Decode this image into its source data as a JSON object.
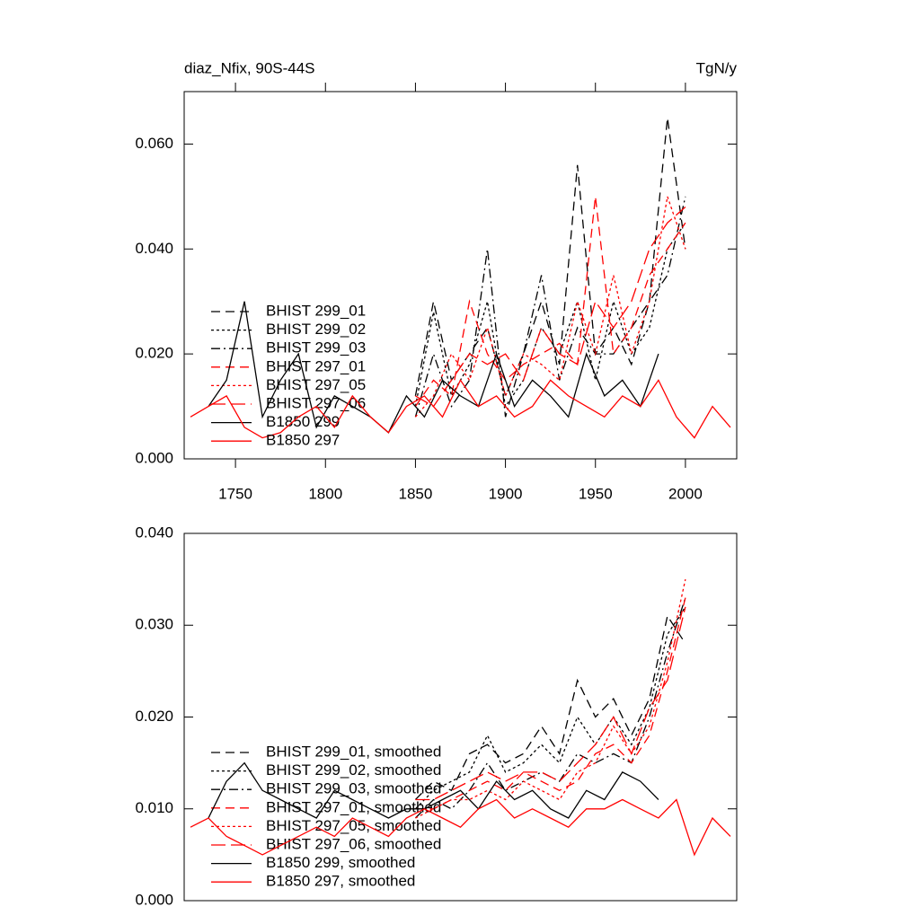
{
  "chart_data": [
    {
      "type": "line",
      "title": "diaz_Nfix, 90S-44S",
      "units": "TgN/y",
      "xlim": [
        1721.5,
        2028.5
      ],
      "ylim": [
        0,
        0.07
      ],
      "xticks": [
        1750,
        1800,
        1850,
        1900,
        1950,
        2000
      ],
      "yticks": [
        {
          "value": 0,
          "label": "0.000"
        },
        {
          "value": 0.02,
          "label": "0.020"
        },
        {
          "value": 0.04,
          "label": "0.040"
        },
        {
          "value": 0.06,
          "label": "0.060"
        }
      ],
      "legend": "left",
      "series": [
        {
          "name": "BHIST 299_01",
          "color": "#000000",
          "dash": "dash",
          "x": [
            1850,
            1860,
            1870,
            1880,
            1890,
            1900,
            1910,
            1920,
            1930,
            1940,
            1950,
            1960,
            1970,
            1980,
            1990,
            2000
          ],
          "values": [
            0.012,
            0.03,
            0.015,
            0.02,
            0.025,
            0.012,
            0.02,
            0.03,
            0.018,
            0.056,
            0.02,
            0.025,
            0.018,
            0.03,
            0.065,
            0.04
          ]
        },
        {
          "name": "BHIST 299_02",
          "color": "#000000",
          "dash": "dot",
          "x": [
            1850,
            1860,
            1870,
            1880,
            1890,
            1900,
            1910,
            1920,
            1930,
            1940,
            1950,
            1960,
            1970,
            1980,
            1990,
            2000
          ],
          "values": [
            0.01,
            0.028,
            0.012,
            0.018,
            0.03,
            0.01,
            0.015,
            0.025,
            0.02,
            0.03,
            0.015,
            0.03,
            0.02,
            0.025,
            0.04,
            0.045
          ]
        },
        {
          "name": "BHIST 299_03",
          "color": "#000000",
          "dash": "dash-dot",
          "x": [
            1850,
            1860,
            1870,
            1880,
            1890,
            1900,
            1910,
            1920,
            1930,
            1940,
            1950,
            1960,
            1970,
            1980,
            1990,
            2000
          ],
          "values": [
            0.008,
            0.02,
            0.01,
            0.015,
            0.04,
            0.008,
            0.02,
            0.035,
            0.015,
            0.025,
            0.02,
            0.02,
            0.025,
            0.03,
            0.035,
            0.05
          ]
        },
        {
          "name": "BHIST 297_01",
          "color": "#ff0000",
          "dash": "dash",
          "x": [
            1850,
            1860,
            1870,
            1880,
            1890,
            1900,
            1910,
            1920,
            1930,
            1940,
            1950,
            1960,
            1970,
            1980,
            1990,
            2000
          ],
          "values": [
            0.01,
            0.015,
            0.012,
            0.03,
            0.02,
            0.015,
            0.018,
            0.02,
            0.022,
            0.018,
            0.05,
            0.02,
            0.025,
            0.035,
            0.04,
            0.045
          ]
        },
        {
          "name": "BHIST 297_05",
          "color": "#ff0000",
          "dash": "dot",
          "x": [
            1850,
            1860,
            1870,
            1880,
            1890,
            1900,
            1910,
            1920,
            1930,
            1940,
            1950,
            1960,
            1970,
            1980,
            1990,
            2000
          ],
          "values": [
            0.008,
            0.012,
            0.02,
            0.015,
            0.025,
            0.012,
            0.02,
            0.018,
            0.015,
            0.03,
            0.02,
            0.035,
            0.02,
            0.03,
            0.05,
            0.04
          ]
        },
        {
          "name": "BHIST 297_06",
          "color": "#ff0000",
          "dash": "long-dash",
          "x": [
            1850,
            1860,
            1870,
            1880,
            1890,
            1900,
            1910,
            1920,
            1930,
            1940,
            1950,
            1960,
            1970,
            1980,
            1990,
            2000
          ],
          "values": [
            0.012,
            0.01,
            0.015,
            0.02,
            0.018,
            0.02,
            0.015,
            0.025,
            0.02,
            0.018,
            0.03,
            0.025,
            0.03,
            0.04,
            0.045,
            0.048
          ]
        },
        {
          "name": "B1850 299",
          "color": "#000000",
          "dash": "solid",
          "x": [
            1735,
            1745,
            1755,
            1765,
            1775,
            1785,
            1795,
            1805,
            1815,
            1825,
            1835,
            1845,
            1855,
            1865,
            1875,
            1885,
            1895,
            1905,
            1915,
            1925,
            1935,
            1945,
            1955,
            1965,
            1975,
            1985
          ],
          "values": [
            0.01,
            0.015,
            0.03,
            0.008,
            0.015,
            0.02,
            0.006,
            0.012,
            0.01,
            0.008,
            0.005,
            0.012,
            0.008,
            0.015,
            0.012,
            0.01,
            0.02,
            0.01,
            0.015,
            0.012,
            0.008,
            0.02,
            0.012,
            0.015,
            0.01,
            0.02
          ]
        },
        {
          "name": "B1850 297",
          "color": "#ff0000",
          "dash": "solid",
          "x": [
            1725,
            1735,
            1745,
            1755,
            1765,
            1775,
            1785,
            1795,
            1805,
            1815,
            1825,
            1835,
            1845,
            1855,
            1865,
            1875,
            1885,
            1895,
            1905,
            1915,
            1925,
            1935,
            1945,
            1955,
            1965,
            1975,
            1985,
            1995,
            2005,
            2015,
            2025
          ],
          "values": [
            0.008,
            0.01,
            0.012,
            0.006,
            0.004,
            0.005,
            0.008,
            0.01,
            0.006,
            0.012,
            0.008,
            0.005,
            0.01,
            0.012,
            0.008,
            0.015,
            0.01,
            0.012,
            0.008,
            0.01,
            0.015,
            0.012,
            0.01,
            0.008,
            0.012,
            0.01,
            0.015,
            0.008,
            0.004,
            0.01,
            0.006
          ]
        }
      ]
    },
    {
      "type": "line",
      "xlim": [
        1721.5,
        2028.5
      ],
      "ylim": [
        0,
        0.04
      ],
      "yticks": [
        {
          "value": 0,
          "label": "0.000"
        },
        {
          "value": 0.01,
          "label": "0.010"
        },
        {
          "value": 0.02,
          "label": "0.020"
        },
        {
          "value": 0.03,
          "label": "0.030"
        },
        {
          "value": 0.04,
          "label": "0.040"
        }
      ],
      "legend": "left",
      "series": [
        {
          "name": "BHIST 299_01, smoothed",
          "color": "#000000",
          "dash": "dash",
          "x": [
            1850,
            1860,
            1870,
            1880,
            1890,
            1900,
            1910,
            1920,
            1930,
            1940,
            1950,
            1960,
            1970,
            1980,
            1990,
            2000
          ],
          "values": [
            0.011,
            0.013,
            0.012,
            0.016,
            0.017,
            0.015,
            0.016,
            0.019,
            0.016,
            0.024,
            0.02,
            0.022,
            0.018,
            0.022,
            0.031,
            0.028
          ]
        },
        {
          "name": "BHIST 299_02, smoothed",
          "color": "#000000",
          "dash": "dot",
          "x": [
            1850,
            1860,
            1870,
            1880,
            1890,
            1900,
            1910,
            1920,
            1930,
            1940,
            1950,
            1960,
            1970,
            1980,
            1990,
            2000
          ],
          "values": [
            0.01,
            0.012,
            0.013,
            0.014,
            0.018,
            0.014,
            0.015,
            0.017,
            0.015,
            0.02,
            0.017,
            0.02,
            0.017,
            0.021,
            0.029,
            0.032
          ]
        },
        {
          "name": "BHIST 299_03, smoothed",
          "color": "#000000",
          "dash": "dash-dot",
          "x": [
            1850,
            1860,
            1870,
            1880,
            1890,
            1900,
            1910,
            1920,
            1930,
            1940,
            1950,
            1960,
            1970,
            1980,
            1990,
            2000
          ],
          "values": [
            0.009,
            0.011,
            0.01,
            0.012,
            0.015,
            0.012,
            0.013,
            0.014,
            0.013,
            0.016,
            0.015,
            0.016,
            0.015,
            0.02,
            0.027,
            0.033
          ]
        },
        {
          "name": "BHIST 297_01, smoothed",
          "color": "#ff0000",
          "dash": "dash",
          "x": [
            1850,
            1860,
            1870,
            1880,
            1890,
            1900,
            1910,
            1920,
            1930,
            1940,
            1950,
            1960,
            1970,
            1980,
            1990,
            2000
          ],
          "values": [
            0.01,
            0.01,
            0.011,
            0.012,
            0.013,
            0.012,
            0.014,
            0.013,
            0.012,
            0.013,
            0.016,
            0.017,
            0.015,
            0.018,
            0.025,
            0.033
          ]
        },
        {
          "name": "BHIST 297_05, smoothed",
          "color": "#ff0000",
          "dash": "dot",
          "x": [
            1850,
            1860,
            1870,
            1880,
            1890,
            1900,
            1910,
            1920,
            1930,
            1940,
            1950,
            1960,
            1970,
            1980,
            1990,
            2000
          ],
          "values": [
            0.009,
            0.01,
            0.011,
            0.011,
            0.012,
            0.011,
            0.013,
            0.012,
            0.011,
            0.014,
            0.015,
            0.019,
            0.016,
            0.019,
            0.026,
            0.035
          ]
        },
        {
          "name": "BHIST 297_06, smoothed",
          "color": "#ff0000",
          "dash": "long-dash",
          "x": [
            1850,
            1860,
            1870,
            1880,
            1890,
            1900,
            1910,
            1920,
            1930,
            1940,
            1950,
            1960,
            1970,
            1980,
            1990,
            2000
          ],
          "values": [
            0.011,
            0.011,
            0.012,
            0.013,
            0.014,
            0.013,
            0.014,
            0.014,
            0.013,
            0.015,
            0.017,
            0.02,
            0.016,
            0.021,
            0.024,
            0.032
          ]
        },
        {
          "name": "B1850 299, smoothed",
          "color": "#000000",
          "dash": "solid",
          "x": [
            1735,
            1745,
            1755,
            1765,
            1775,
            1785,
            1795,
            1805,
            1815,
            1825,
            1835,
            1845,
            1855,
            1865,
            1875,
            1885,
            1895,
            1905,
            1915,
            1925,
            1935,
            1945,
            1955,
            1965,
            1975,
            1985
          ],
          "values": [
            0.009,
            0.013,
            0.015,
            0.012,
            0.011,
            0.01,
            0.009,
            0.012,
            0.011,
            0.01,
            0.009,
            0.01,
            0.01,
            0.011,
            0.012,
            0.01,
            0.013,
            0.011,
            0.012,
            0.01,
            0.009,
            0.012,
            0.011,
            0.014,
            0.013,
            0.011
          ]
        },
        {
          "name": "B1850 297, smoothed",
          "color": "#ff0000",
          "dash": "solid",
          "x": [
            1725,
            1735,
            1745,
            1755,
            1765,
            1775,
            1785,
            1795,
            1805,
            1815,
            1825,
            1835,
            1845,
            1855,
            1865,
            1875,
            1885,
            1895,
            1905,
            1915,
            1925,
            1935,
            1945,
            1955,
            1965,
            1975,
            1985,
            1995,
            2005,
            2015,
            2025
          ],
          "values": [
            0.008,
            0.009,
            0.007,
            0.006,
            0.005,
            0.006,
            0.007,
            0.008,
            0.007,
            0.009,
            0.008,
            0.007,
            0.009,
            0.01,
            0.009,
            0.008,
            0.01,
            0.011,
            0.009,
            0.01,
            0.009,
            0.008,
            0.01,
            0.01,
            0.011,
            0.01,
            0.009,
            0.011,
            0.005,
            0.009,
            0.007
          ]
        }
      ]
    }
  ]
}
